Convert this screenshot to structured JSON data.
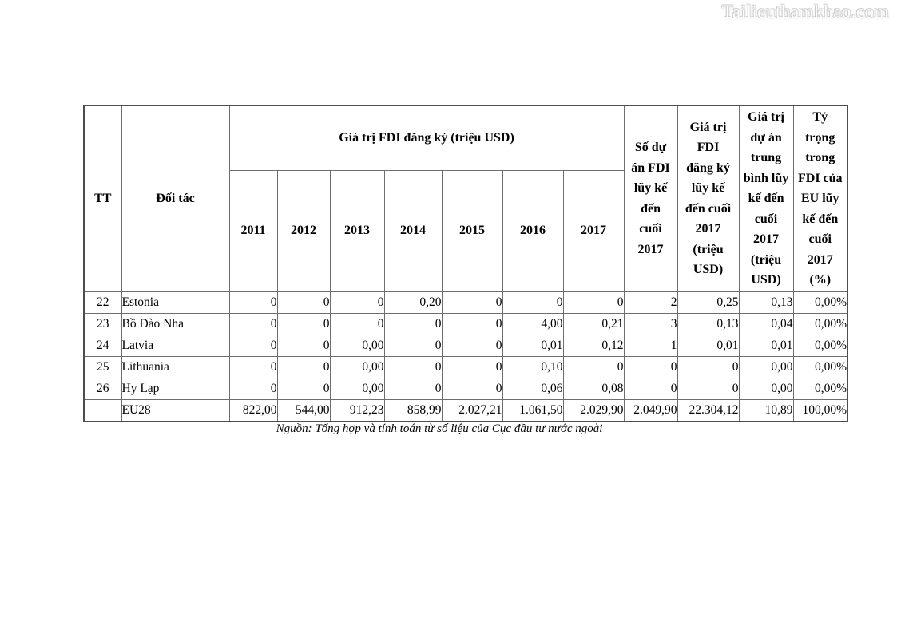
{
  "watermark": {
    "text": "Tailieuthamkhao.com"
  },
  "table": {
    "header": {
      "tt": "TT",
      "partner": "Đối tác",
      "fdi_registered_group": "Giá trị FDI đăng ký (triệu USD)",
      "years": [
        "2011",
        "2012",
        "2013",
        "2014",
        "2015",
        "2016",
        "2017"
      ],
      "cum_projects": "Số dự\nán FDI\nlũy kế\nđến\ncuối\n2017",
      "cum_value": "Giá trị\nFDI\nđăng ký\nlũy kế\nđến cuối\n2017\n(triệu\nUSD)",
      "avg_value": "Giá trị\ndự án\ntrung\nbình lũy\nkế đến\ncuối\n2017\n(triệu\nUSD)",
      "share": "Tỷ\ntrọng\ntrong\nFDI của\nEU lũy\nkế đến\ncuối\n2017\n(%)"
    },
    "rows": [
      {
        "tt": "22",
        "partner": "Estonia",
        "values": [
          "0",
          "0",
          "0",
          "0,20",
          "0",
          "0",
          "0",
          "2",
          "0,25",
          "0,13",
          "0,00%"
        ]
      },
      {
        "tt": "23",
        "partner": "Bồ Đào Nha",
        "values": [
          "0",
          "0",
          "0",
          "0",
          "0",
          "4,00",
          "0,21",
          "3",
          "0,13",
          "0,04",
          "0,00%"
        ]
      },
      {
        "tt": "24",
        "partner": "Latvia",
        "values": [
          "0",
          "0",
          "0,00",
          "0",
          "0",
          "0,01",
          "0,12",
          "1",
          "0,01",
          "0,01",
          "0,00%"
        ]
      },
      {
        "tt": "25",
        "partner": "Lithuania",
        "values": [
          "0",
          "0",
          "0,00",
          "0",
          "0",
          "0,10",
          "0",
          "0",
          "0",
          "0,00",
          "0,00%"
        ]
      },
      {
        "tt": "26",
        "partner": "Hy Lạp",
        "values": [
          "0",
          "0",
          "0,00",
          "0",
          "0",
          "0,06",
          "0,08",
          "0",
          "0",
          "0,00",
          "0,00%"
        ]
      },
      {
        "tt": "",
        "partner": "EU28",
        "values": [
          "822,00",
          "544,00",
          "912,23",
          "858,99",
          "2.027,21",
          "1.061,50",
          "2.029,90",
          "2.049,90",
          "22.304,12",
          "10,89",
          "100,00%"
        ]
      }
    ],
    "source_note": "Nguồn: Tổng hợp và tính toán từ số liệu của Cục đầu tư nước ngoài"
  }
}
